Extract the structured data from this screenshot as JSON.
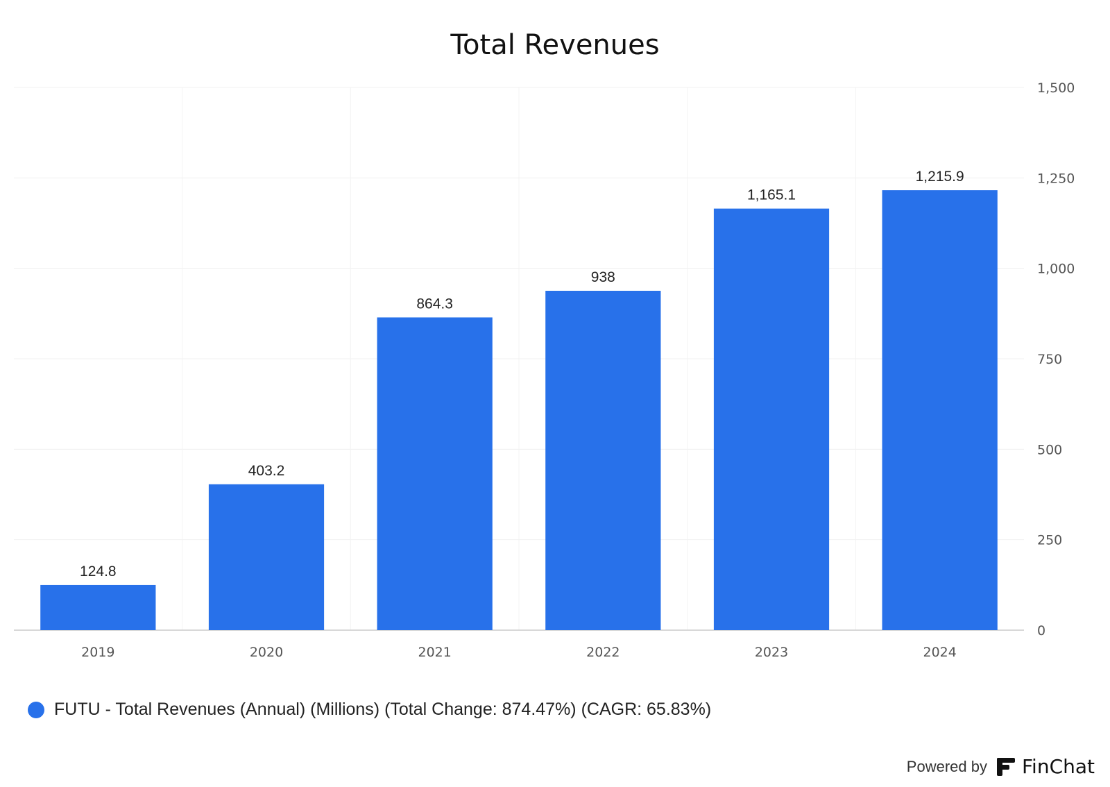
{
  "chart_data": {
    "type": "bar",
    "title": "Total Revenues",
    "categories": [
      "2019",
      "2020",
      "2021",
      "2022",
      "2023",
      "2024"
    ],
    "values": [
      124.8,
      403.2,
      864.3,
      938,
      1165.1,
      1215.9
    ],
    "data_labels": [
      "124.8",
      "403.2",
      "864.3",
      "938",
      "1,165.1",
      "1,215.9"
    ],
    "ylim": [
      0,
      1500
    ],
    "yticks": [
      0,
      250,
      500,
      750,
      1000,
      1250,
      1500
    ],
    "ytick_labels": [
      "0",
      "250",
      "500",
      "750",
      "1,000",
      "1,250",
      "1,500"
    ],
    "y_axis_side": "right",
    "grid": true,
    "bar_color": "#2871ea",
    "legend": {
      "placement": "bottom-left",
      "entries": [
        {
          "label": "FUTU - Total Revenues (Annual) (Millions) (Total Change: 874.47%) (CAGR: 65.83%)",
          "color": "#2871ea"
        }
      ]
    }
  },
  "footer": {
    "powered_by": "Powered by",
    "brand": "FinChat",
    "logo_icon": "finchat-logo-icon"
  }
}
